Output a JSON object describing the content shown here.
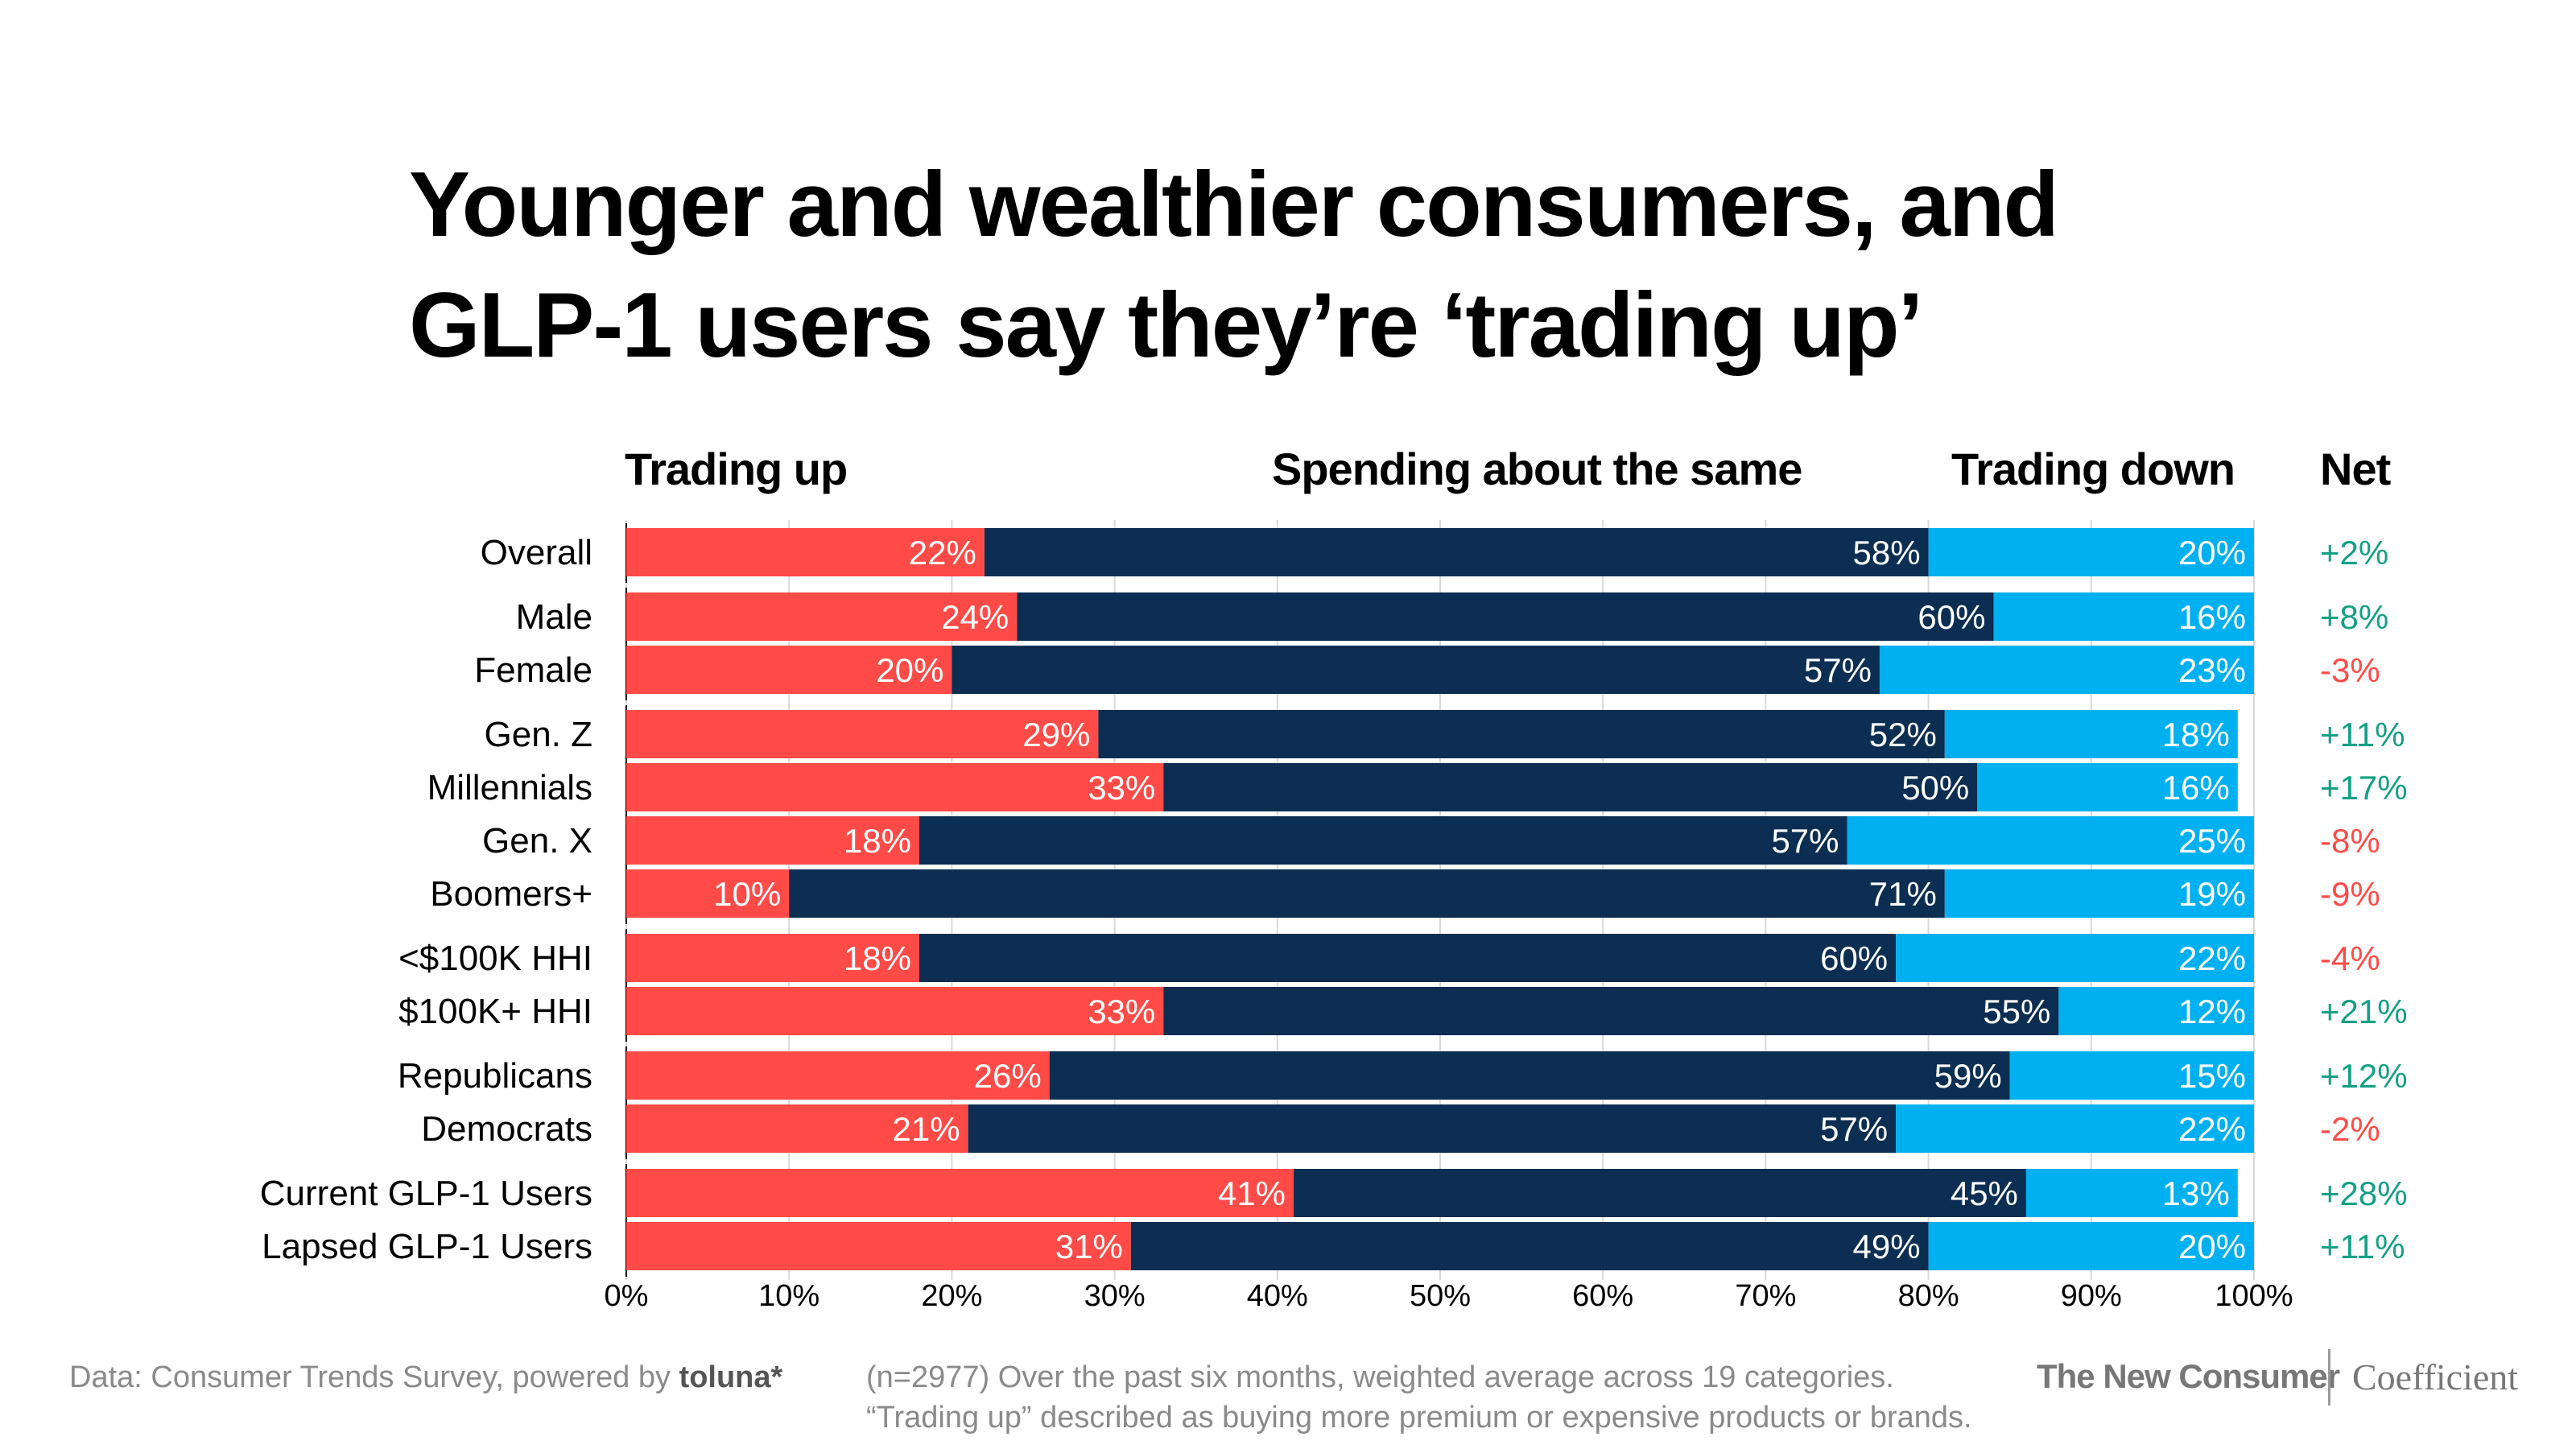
{
  "title_lines": [
    "Younger and wealthier consumers, and",
    "GLP-1 users say they’re ‘trading up’"
  ],
  "chart_data": {
    "type": "bar",
    "orientation": "horizontal",
    "stacked": true,
    "title": "Younger and wealthier consumers, and GLP-1 users say they’re ‘trading up’",
    "xlim": [
      0,
      100
    ],
    "x_ticks": [
      "0%",
      "10%",
      "20%",
      "30%",
      "40%",
      "50%",
      "60%",
      "70%",
      "80%",
      "90%",
      "100%"
    ],
    "grid": true,
    "series_headers": [
      "Trading up",
      "Spending about the same",
      "Trading down"
    ],
    "net_header": "Net",
    "colors": {
      "trading_up": "#ff4b47",
      "same": "#0c2e52",
      "trading_down": "#00b0f0",
      "net_positive": "#14a085",
      "net_negative": "#ff4b47"
    },
    "categories": [
      "Overall",
      "Male",
      "Female",
      "Gen. Z",
      "Millennials",
      "Gen. X",
      "Boomers+",
      "<$100K HHI",
      "$100K+ HHI",
      "Republicans",
      "Democrats",
      "Current GLP-1 Users",
      "Lapsed GLP-1 Users"
    ],
    "groups": [
      [
        0
      ],
      [
        1,
        2
      ],
      [
        3,
        4,
        5,
        6
      ],
      [
        7,
        8
      ],
      [
        9,
        10
      ],
      [
        11,
        12
      ]
    ],
    "series": [
      {
        "name": "Trading up",
        "values": [
          22,
          24,
          20,
          29,
          33,
          18,
          10,
          18,
          33,
          26,
          21,
          41,
          31
        ]
      },
      {
        "name": "Spending about the same",
        "values": [
          58,
          60,
          57,
          52,
          50,
          57,
          71,
          60,
          55,
          59,
          57,
          45,
          49
        ]
      },
      {
        "name": "Trading down",
        "values": [
          20,
          16,
          23,
          18,
          16,
          25,
          19,
          22,
          12,
          15,
          22,
          13,
          20
        ]
      }
    ],
    "net": [
      "+2%",
      "+8%",
      "-3%",
      "+11%",
      "+17%",
      "-8%",
      "-9%",
      "-4%",
      "+21%",
      "+12%",
      "-2%",
      "+28%",
      "+11%"
    ]
  },
  "footer": {
    "source_prefix": "Data: Consumer Trends Survey, powered by ",
    "source_brand": "toluna*",
    "note_line1": "(n=2977) Over the past six months, weighted average across 19 categories.",
    "note_line2": "“Trading up” described as buying more premium or expensive products or brands.",
    "brand_primary": "The New Consumer",
    "brand_secondary": "Coefficient"
  }
}
